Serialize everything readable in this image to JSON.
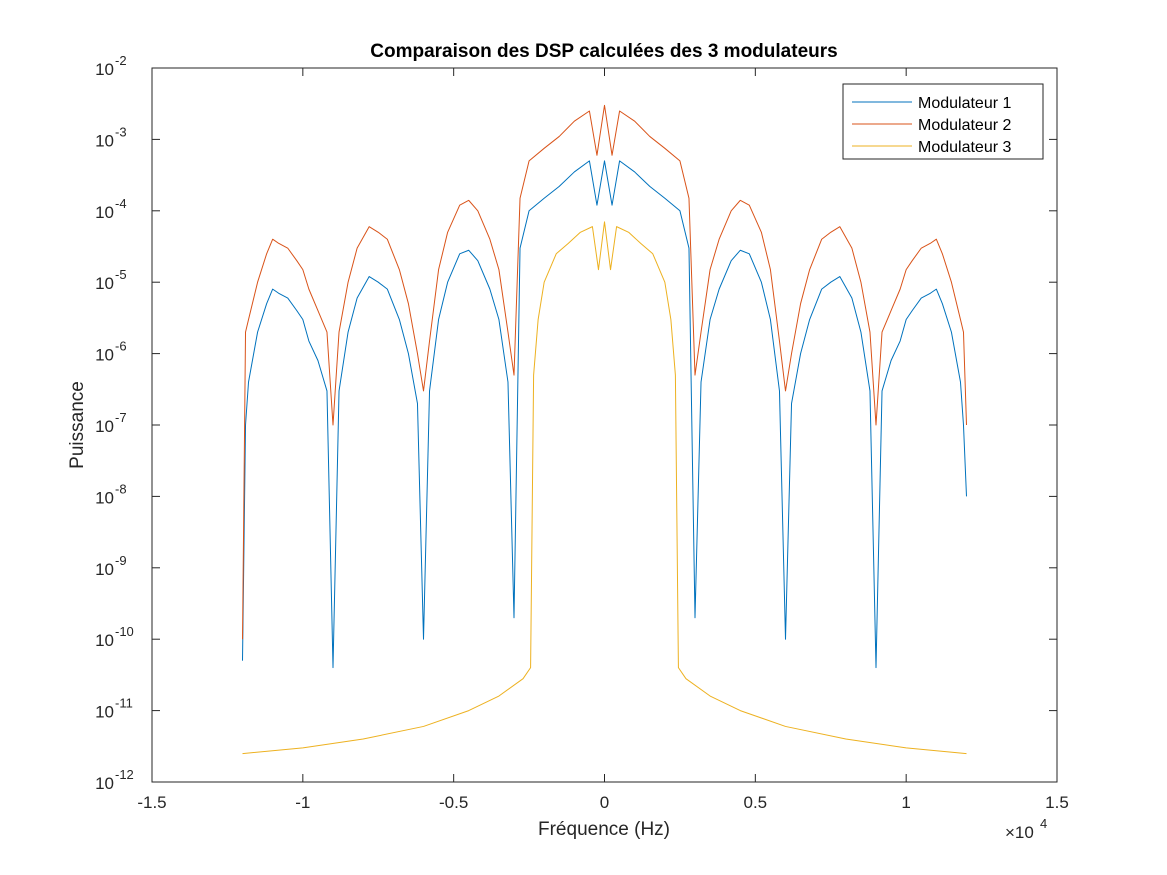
{
  "chart_data": {
    "type": "line",
    "title": "Comparaison des DSP calculées des 3 modulateurs",
    "xlabel": "Fréquence (Hz)",
    "ylabel": "Puissance",
    "x_multiplier": "×10",
    "x_multiplier_exp": "4",
    "xlim": [
      -15000,
      15000
    ],
    "ylim": [
      1e-12,
      0.01
    ],
    "yscale": "log",
    "x_ticks": [
      -15000,
      -10000,
      -5000,
      0,
      5000,
      10000,
      15000
    ],
    "x_tick_labels": [
      "-1.5",
      "-1",
      "-0.5",
      "0",
      "0.5",
      "1",
      "1.5"
    ],
    "y_ticks": [
      1e-12,
      1e-11,
      1e-10,
      1e-09,
      1e-08,
      1e-07,
      1e-06,
      1e-05,
      0.0001,
      0.001,
      0.01
    ],
    "y_tick_exponents": [
      "-12",
      "-11",
      "-10",
      "-9",
      "-8",
      "-7",
      "-6",
      "-5",
      "-4",
      "-3",
      "-2"
    ],
    "y_tick_base": "10",
    "grid": false,
    "legend_position": "top-right",
    "series": [
      {
        "name": "Modulateur 1",
        "color": "#0072BD",
        "points": [
          [
            -12000,
            5e-11
          ],
          [
            -11900,
            1e-07
          ],
          [
            -11800,
            4e-07
          ],
          [
            -11500,
            2e-06
          ],
          [
            -11200,
            5e-06
          ],
          [
            -11000,
            8e-06
          ],
          [
            -10800,
            7e-06
          ],
          [
            -10500,
            6e-06
          ],
          [
            -10200,
            4e-06
          ],
          [
            -10000,
            3e-06
          ],
          [
            -9800,
            1.5e-06
          ],
          [
            -9500,
            8e-07
          ],
          [
            -9200,
            3e-07
          ],
          [
            -9000,
            4e-11
          ],
          [
            -8800,
            3e-07
          ],
          [
            -8500,
            2e-06
          ],
          [
            -8200,
            6e-06
          ],
          [
            -7800,
            1.2e-05
          ],
          [
            -7500,
            1e-05
          ],
          [
            -7200,
            8e-06
          ],
          [
            -6800,
            3e-06
          ],
          [
            -6500,
            1e-06
          ],
          [
            -6200,
            2e-07
          ],
          [
            -6000,
            1e-10
          ],
          [
            -5800,
            3e-07
          ],
          [
            -5500,
            3e-06
          ],
          [
            -5200,
            1e-05
          ],
          [
            -4800,
            2.5e-05
          ],
          [
            -4500,
            2.8e-05
          ],
          [
            -4200,
            2e-05
          ],
          [
            -3800,
            8e-06
          ],
          [
            -3500,
            3e-06
          ],
          [
            -3200,
            4e-07
          ],
          [
            -3000,
            2e-10
          ],
          [
            -2800,
            3e-05
          ],
          [
            -2500,
            0.0001
          ],
          [
            -2000,
            0.00015
          ],
          [
            -1500,
            0.00022
          ],
          [
            -1000,
            0.00035
          ],
          [
            -500,
            0.0005
          ],
          [
            -250,
            0.00012
          ],
          [
            0,
            0.0005
          ],
          [
            250,
            0.00012
          ],
          [
            500,
            0.0005
          ],
          [
            1000,
            0.00035
          ],
          [
            1500,
            0.00022
          ],
          [
            2000,
            0.00015
          ],
          [
            2500,
            0.0001
          ],
          [
            2800,
            3e-05
          ],
          [
            3000,
            2e-10
          ],
          [
            3200,
            4e-07
          ],
          [
            3500,
            3e-06
          ],
          [
            3800,
            8e-06
          ],
          [
            4200,
            2e-05
          ],
          [
            4500,
            2.8e-05
          ],
          [
            4800,
            2.5e-05
          ],
          [
            5200,
            1e-05
          ],
          [
            5500,
            3e-06
          ],
          [
            5800,
            3e-07
          ],
          [
            6000,
            1e-10
          ],
          [
            6200,
            2e-07
          ],
          [
            6500,
            1e-06
          ],
          [
            6800,
            3e-06
          ],
          [
            7200,
            8e-06
          ],
          [
            7500,
            1e-05
          ],
          [
            7800,
            1.2e-05
          ],
          [
            8200,
            6e-06
          ],
          [
            8500,
            2e-06
          ],
          [
            8800,
            3e-07
          ],
          [
            9000,
            4e-11
          ],
          [
            9200,
            3e-07
          ],
          [
            9500,
            8e-07
          ],
          [
            9800,
            1.5e-06
          ],
          [
            10000,
            3e-06
          ],
          [
            10200,
            4e-06
          ],
          [
            10500,
            6e-06
          ],
          [
            10800,
            7e-06
          ],
          [
            11000,
            8e-06
          ],
          [
            11200,
            5e-06
          ],
          [
            11500,
            2e-06
          ],
          [
            11800,
            4e-07
          ],
          [
            11900,
            1e-07
          ],
          [
            12000,
            1e-08
          ]
        ]
      },
      {
        "name": "Modulateur 2",
        "color": "#D95319",
        "points": [
          [
            -12000,
            1e-10
          ],
          [
            -11900,
            2e-06
          ],
          [
            -11800,
            3e-06
          ],
          [
            -11500,
            1e-05
          ],
          [
            -11200,
            2.5e-05
          ],
          [
            -11000,
            4e-05
          ],
          [
            -10800,
            3.5e-05
          ],
          [
            -10500,
            3e-05
          ],
          [
            -10200,
            2e-05
          ],
          [
            -10000,
            1.5e-05
          ],
          [
            -9800,
            8e-06
          ],
          [
            -9500,
            4e-06
          ],
          [
            -9200,
            2e-06
          ],
          [
            -9000,
            1e-07
          ],
          [
            -8800,
            2e-06
          ],
          [
            -8500,
            1e-05
          ],
          [
            -8200,
            3e-05
          ],
          [
            -7800,
            6e-05
          ],
          [
            -7500,
            5e-05
          ],
          [
            -7200,
            4e-05
          ],
          [
            -6800,
            1.5e-05
          ],
          [
            -6500,
            5e-06
          ],
          [
            -6200,
            1e-06
          ],
          [
            -6000,
            3e-07
          ],
          [
            -5800,
            1.5e-06
          ],
          [
            -5500,
            1.5e-05
          ],
          [
            -5200,
            5e-05
          ],
          [
            -4800,
            0.00012
          ],
          [
            -4500,
            0.00014
          ],
          [
            -4200,
            0.0001
          ],
          [
            -3800,
            4e-05
          ],
          [
            -3500,
            1.5e-05
          ],
          [
            -3200,
            2e-06
          ],
          [
            -3000,
            5e-07
          ],
          [
            -2800,
            0.00015
          ],
          [
            -2500,
            0.0005
          ],
          [
            -2000,
            0.00075
          ],
          [
            -1500,
            0.0011
          ],
          [
            -1000,
            0.0018
          ],
          [
            -500,
            0.0025
          ],
          [
            -250,
            0.0006
          ],
          [
            0,
            0.003
          ],
          [
            250,
            0.0006
          ],
          [
            500,
            0.0025
          ],
          [
            1000,
            0.0018
          ],
          [
            1500,
            0.0011
          ],
          [
            2000,
            0.00075
          ],
          [
            2500,
            0.0005
          ],
          [
            2800,
            0.00015
          ],
          [
            3000,
            5e-07
          ],
          [
            3200,
            2e-06
          ],
          [
            3500,
            1.5e-05
          ],
          [
            3800,
            4e-05
          ],
          [
            4200,
            0.0001
          ],
          [
            4500,
            0.00014
          ],
          [
            4800,
            0.00012
          ],
          [
            5200,
            5e-05
          ],
          [
            5500,
            1.5e-05
          ],
          [
            5800,
            1.5e-06
          ],
          [
            6000,
            3e-07
          ],
          [
            6200,
            1e-06
          ],
          [
            6500,
            5e-06
          ],
          [
            6800,
            1.5e-05
          ],
          [
            7200,
            4e-05
          ],
          [
            7500,
            5e-05
          ],
          [
            7800,
            6e-05
          ],
          [
            8200,
            3e-05
          ],
          [
            8500,
            1e-05
          ],
          [
            8800,
            2e-06
          ],
          [
            9000,
            1e-07
          ],
          [
            9200,
            2e-06
          ],
          [
            9500,
            4e-06
          ],
          [
            9800,
            8e-06
          ],
          [
            10000,
            1.5e-05
          ],
          [
            10200,
            2e-05
          ],
          [
            10500,
            3e-05
          ],
          [
            10800,
            3.5e-05
          ],
          [
            11000,
            4e-05
          ],
          [
            11200,
            2.5e-05
          ],
          [
            11500,
            1e-05
          ],
          [
            11800,
            3e-06
          ],
          [
            11900,
            2e-06
          ],
          [
            12000,
            1e-07
          ]
        ]
      },
      {
        "name": "Modulateur 3",
        "color": "#EDB120",
        "points": [
          [
            -12000,
            2.5e-12
          ],
          [
            -10000,
            3e-12
          ],
          [
            -8000,
            4e-12
          ],
          [
            -6000,
            6e-12
          ],
          [
            -4500,
            1e-11
          ],
          [
            -3500,
            1.6e-11
          ],
          [
            -2700,
            2.8e-11
          ],
          [
            -2450,
            4e-11
          ],
          [
            -2350,
            5e-07
          ],
          [
            -2200,
            3e-06
          ],
          [
            -2000,
            1e-05
          ],
          [
            -1600,
            2.5e-05
          ],
          [
            -1200,
            3.5e-05
          ],
          [
            -800,
            5e-05
          ],
          [
            -400,
            6e-05
          ],
          [
            -200,
            1.5e-05
          ],
          [
            0,
            7e-05
          ],
          [
            200,
            1.5e-05
          ],
          [
            400,
            6e-05
          ],
          [
            800,
            5e-05
          ],
          [
            1200,
            3.5e-05
          ],
          [
            1600,
            2.5e-05
          ],
          [
            2000,
            1e-05
          ],
          [
            2200,
            3e-06
          ],
          [
            2350,
            5e-07
          ],
          [
            2450,
            4e-11
          ],
          [
            2700,
            2.8e-11
          ],
          [
            3500,
            1.6e-11
          ],
          [
            4500,
            1e-11
          ],
          [
            6000,
            6e-12
          ],
          [
            8000,
            4e-12
          ],
          [
            10000,
            3e-12
          ],
          [
            12000,
            2.5e-12
          ]
        ]
      }
    ]
  }
}
